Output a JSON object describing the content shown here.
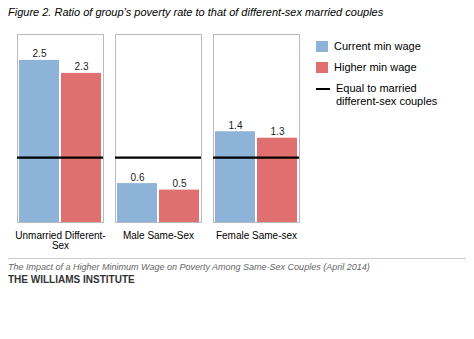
{
  "chart_data": {
    "type": "bar",
    "title": "Figure 2. Ratio of group’s poverty rate to that of different-sex married couples",
    "categories": [
      "Unmarried Different-\nSex",
      "Male Same-Sex",
      "Female Same-sex"
    ],
    "series": [
      {
        "name": "Current min wage",
        "color": "#8db4d8",
        "values": [
          2.5,
          0.6,
          1.4
        ]
      },
      {
        "name": "Higher min wage",
        "color": "#e07070",
        "values": [
          2.3,
          0.5,
          1.3
        ]
      }
    ],
    "reference_lines": [
      {
        "value": 1.0,
        "label": "Equal to married\ndifferent-sex couples",
        "color": "#000000"
      }
    ],
    "caption": [
      "The Impact of a Higher Minimum Wage on Poverty Among Same-Sex Couples (April 2014)",
      "THE WILLIAMS INSTITUTE"
    ],
    "ylim": [
      0,
      2.9
    ],
    "data_labels": true,
    "tick_labels": "x",
    "grid": false,
    "legend": "right"
  }
}
